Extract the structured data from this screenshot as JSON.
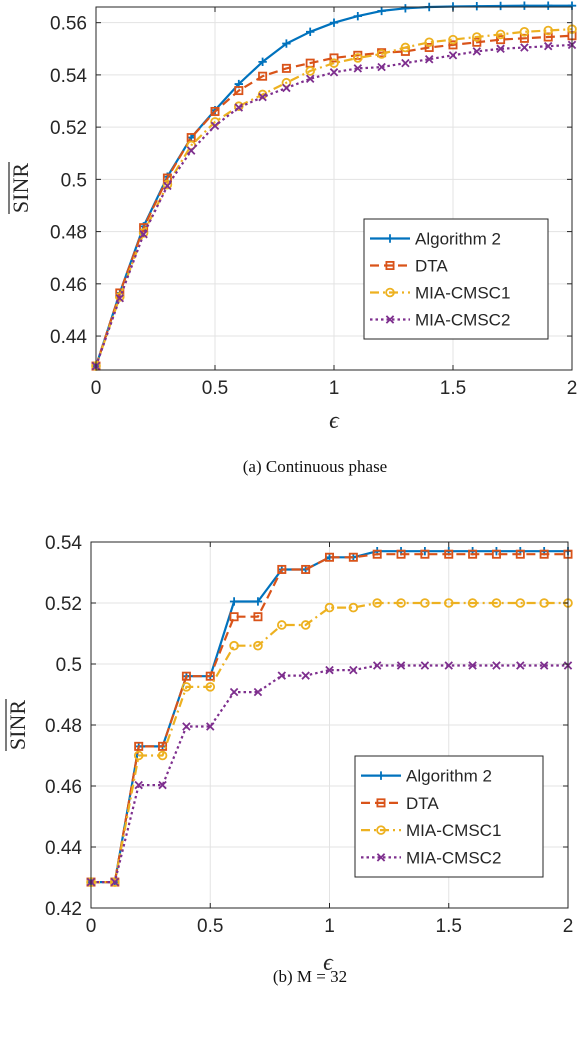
{
  "chart_data": [
    {
      "type": "line",
      "caption": "(a)  Continuous phase",
      "xlabel": "ϵ",
      "ylabel": "SINR",
      "xlim": [
        0,
        2
      ],
      "ylim": [
        0.427,
        0.566
      ],
      "xticks": [
        0,
        0.5,
        1,
        1.5,
        2
      ],
      "xtick_labels": [
        "0",
        "0.5",
        "1",
        "1.5",
        "2"
      ],
      "yticks": [
        0.44,
        0.46,
        0.48,
        0.5,
        0.52,
        0.54,
        0.56
      ],
      "ytick_labels": [
        "0.44",
        "0.46",
        "0.48",
        "0.5",
        "0.52",
        "0.54",
        "0.56"
      ],
      "grid": true,
      "legend_position": "bottom-right",
      "x": [
        0,
        0.1,
        0.2,
        0.3,
        0.4,
        0.5,
        0.6,
        0.7,
        0.8,
        0.9,
        1.0,
        1.1,
        1.2,
        1.3,
        1.4,
        1.5,
        1.6,
        1.7,
        1.8,
        1.9,
        2.0
      ],
      "series": [
        {
          "name": "Algorithm 2",
          "color": "#0072BD",
          "style": "solid",
          "marker": "plus",
          "values": [
            0.4285,
            0.4565,
            0.482,
            0.501,
            0.516,
            0.5265,
            0.5365,
            0.545,
            0.552,
            0.5565,
            0.56,
            0.5625,
            0.5645,
            0.5655,
            0.566,
            0.5662,
            0.5663,
            0.5664,
            0.5665,
            0.5665,
            0.5665
          ]
        },
        {
          "name": "DTA",
          "color": "#D95319",
          "style": "dashed",
          "marker": "square",
          "values": [
            0.4285,
            0.4565,
            0.4815,
            0.5005,
            0.516,
            0.526,
            0.534,
            0.5395,
            0.5425,
            0.5445,
            0.5465,
            0.5475,
            0.5485,
            0.549,
            0.5505,
            0.5515,
            0.5525,
            0.5535,
            0.554,
            0.5545,
            0.555
          ]
        },
        {
          "name": "MIA-CMSC1",
          "color": "#EDB120",
          "style": "dashdot",
          "marker": "circle",
          "values": [
            0.4285,
            0.455,
            0.4795,
            0.498,
            0.513,
            0.522,
            0.528,
            0.5325,
            0.537,
            0.5415,
            0.5445,
            0.5465,
            0.548,
            0.5505,
            0.5525,
            0.5535,
            0.5545,
            0.5555,
            0.5565,
            0.557,
            0.5575
          ]
        },
        {
          "name": "MIA-CMSC2",
          "color": "#7E2F8E",
          "style": "dotted",
          "marker": "x",
          "values": [
            0.4285,
            0.4545,
            0.479,
            0.4975,
            0.511,
            0.5205,
            0.5275,
            0.5315,
            0.535,
            0.5385,
            0.541,
            0.5425,
            0.543,
            0.5445,
            0.546,
            0.5475,
            0.549,
            0.55,
            0.5505,
            0.551,
            0.5515
          ]
        }
      ]
    },
    {
      "type": "line",
      "caption": "(b)  M = 32",
      "xlabel": "ϵ",
      "ylabel": "SINR",
      "xlim": [
        0,
        2
      ],
      "ylim": [
        0.42,
        0.54
      ],
      "xticks": [
        0,
        0.5,
        1,
        1.5,
        2
      ],
      "xtick_labels": [
        "0",
        "0.5",
        "1",
        "1.5",
        "2"
      ],
      "yticks": [
        0.42,
        0.44,
        0.46,
        0.48,
        0.5,
        0.52,
        0.54
      ],
      "ytick_labels": [
        "0.42",
        "0.44",
        "0.46",
        "0.48",
        "0.5",
        "0.52",
        "0.54"
      ],
      "grid": true,
      "legend_position": "bottom-right",
      "x": [
        0,
        0.1,
        0.2,
        0.3,
        0.4,
        0.5,
        0.6,
        0.7,
        0.8,
        0.9,
        1.0,
        1.1,
        1.2,
        1.3,
        1.4,
        1.5,
        1.6,
        1.7,
        1.8,
        1.9,
        2.0
      ],
      "series": [
        {
          "name": "Algorithm 2",
          "color": "#0072BD",
          "style": "solid",
          "marker": "plus",
          "values": [
            0.4285,
            0.4285,
            0.473,
            0.473,
            0.496,
            0.496,
            0.5205,
            0.5205,
            0.531,
            0.531,
            0.535,
            0.535,
            0.537,
            0.537,
            0.537,
            0.537,
            0.537,
            0.537,
            0.537,
            0.537,
            0.537
          ]
        },
        {
          "name": "DTA",
          "color": "#D95319",
          "style": "dashed",
          "marker": "square",
          "values": [
            0.4285,
            0.4285,
            0.473,
            0.473,
            0.496,
            0.496,
            0.5155,
            0.5155,
            0.531,
            0.531,
            0.535,
            0.535,
            0.536,
            0.536,
            0.536,
            0.536,
            0.536,
            0.536,
            0.536,
            0.536,
            0.536
          ]
        },
        {
          "name": "MIA-CMSC1",
          "color": "#EDB120",
          "style": "dashdot",
          "marker": "circle",
          "values": [
            0.4285,
            0.4285,
            0.47,
            0.47,
            0.4925,
            0.4925,
            0.506,
            0.506,
            0.5128,
            0.5128,
            0.5185,
            0.5185,
            0.52,
            0.52,
            0.52,
            0.52,
            0.52,
            0.52,
            0.52,
            0.52,
            0.52
          ]
        },
        {
          "name": "MIA-CMSC2",
          "color": "#7E2F8E",
          "style": "dotted",
          "marker": "x",
          "values": [
            0.4285,
            0.4285,
            0.4603,
            0.4603,
            0.4795,
            0.4795,
            0.4908,
            0.4908,
            0.4962,
            0.4962,
            0.498,
            0.498,
            0.4995,
            0.4995,
            0.4995,
            0.4995,
            0.4995,
            0.4995,
            0.4995,
            0.4995,
            0.4995
          ]
        }
      ]
    }
  ]
}
